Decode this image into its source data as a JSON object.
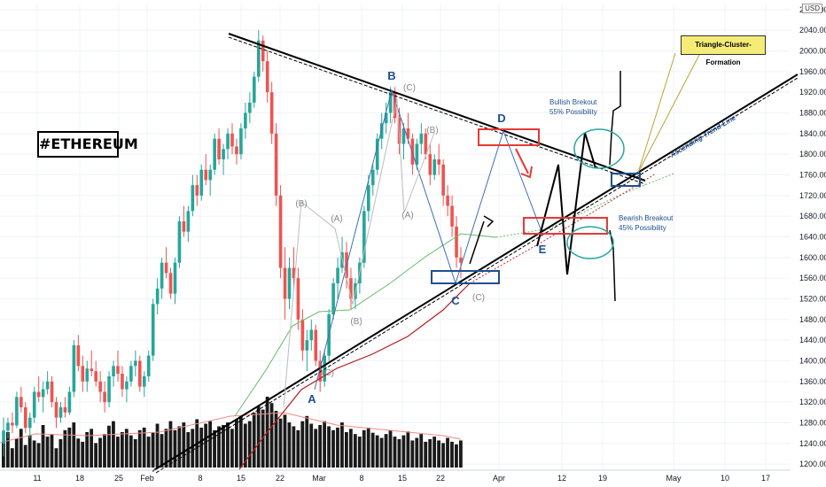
{
  "chart_data": {
    "type": "candlestick",
    "title": "#ETHEREUM",
    "currency": "USD",
    "y_ticks": [
      1200,
      1240,
      1280,
      1320,
      1360,
      1400,
      1440,
      1480,
      1520,
      1560,
      1600,
      1640,
      1680,
      1720,
      1760,
      1800,
      1840,
      1880,
      1920,
      1960,
      2000,
      2040,
      2080
    ],
    "y_tick_labels": [
      "1200.00",
      "1240.00",
      "1280.00",
      "1320.00",
      "1360.00",
      "1400.00",
      "1440.00",
      "1480.00",
      "1520.00",
      "1560.00",
      "1600.00",
      "1640.00",
      "1680.00",
      "1720.00",
      "1760.00",
      "1800.00",
      "1840.00",
      "1880.00",
      "1920.00",
      "1960.00",
      "2000.00",
      "2040.00",
      "2080.00"
    ],
    "ylim": [
      1190,
      2090
    ],
    "x_tick_labels": [
      "11",
      "18",
      "25",
      "Feb",
      "8",
      "15",
      "22",
      "Mar",
      "8",
      "15",
      "22",
      "Apr",
      "12",
      "19",
      "May",
      "10",
      "17"
    ],
    "price_series": [
      [
        1240,
        1290,
        1215,
        1265
      ],
      [
        1265,
        1290,
        1250,
        1280
      ],
      [
        1280,
        1300,
        1260,
        1275
      ],
      [
        1275,
        1340,
        1270,
        1330
      ],
      [
        1330,
        1350,
        1300,
        1310
      ],
      [
        1310,
        1320,
        1260,
        1270
      ],
      [
        1270,
        1300,
        1250,
        1290
      ],
      [
        1290,
        1350,
        1280,
        1340
      ],
      [
        1340,
        1370,
        1320,
        1330
      ],
      [
        1330,
        1360,
        1300,
        1345
      ],
      [
        1345,
        1380,
        1335,
        1360
      ],
      [
        1360,
        1370,
        1310,
        1320
      ],
      [
        1320,
        1330,
        1270,
        1290
      ],
      [
        1290,
        1320,
        1280,
        1310
      ],
      [
        1310,
        1330,
        1290,
        1300
      ],
      [
        1300,
        1350,
        1295,
        1340
      ],
      [
        1340,
        1440,
        1330,
        1430
      ],
      [
        1430,
        1450,
        1380,
        1390
      ],
      [
        1390,
        1410,
        1340,
        1360
      ],
      [
        1360,
        1400,
        1340,
        1385
      ],
      [
        1385,
        1420,
        1370,
        1380
      ],
      [
        1380,
        1400,
        1350,
        1360
      ],
      [
        1360,
        1380,
        1320,
        1340
      ],
      [
        1340,
        1360,
        1300,
        1320
      ],
      [
        1320,
        1380,
        1310,
        1370
      ],
      [
        1370,
        1400,
        1350,
        1390
      ],
      [
        1390,
        1420,
        1360,
        1375
      ],
      [
        1375,
        1390,
        1330,
        1345
      ],
      [
        1345,
        1370,
        1320,
        1360
      ],
      [
        1360,
        1400,
        1350,
        1390
      ],
      [
        1390,
        1420,
        1370,
        1400
      ],
      [
        1400,
        1410,
        1340,
        1350
      ],
      [
        1350,
        1380,
        1330,
        1370
      ],
      [
        1370,
        1420,
        1360,
        1410
      ],
      [
        1410,
        1520,
        1400,
        1510
      ],
      [
        1510,
        1560,
        1490,
        1540
      ],
      [
        1540,
        1600,
        1520,
        1590
      ],
      [
        1590,
        1620,
        1560,
        1570
      ],
      [
        1570,
        1580,
        1520,
        1530
      ],
      [
        1530,
        1600,
        1510,
        1590
      ],
      [
        1590,
        1680,
        1580,
        1670
      ],
      [
        1670,
        1700,
        1640,
        1650
      ],
      [
        1650,
        1700,
        1630,
        1690
      ],
      [
        1690,
        1760,
        1680,
        1740
      ],
      [
        1740,
        1760,
        1700,
        1720
      ],
      [
        1720,
        1780,
        1710,
        1770
      ],
      [
        1770,
        1800,
        1740,
        1750
      ],
      [
        1750,
        1780,
        1720,
        1770
      ],
      [
        1770,
        1840,
        1760,
        1830
      ],
      [
        1830,
        1850,
        1780,
        1790
      ],
      [
        1790,
        1820,
        1760,
        1810
      ],
      [
        1810,
        1850,
        1790,
        1840
      ],
      [
        1840,
        1860,
        1800,
        1815
      ],
      [
        1815,
        1830,
        1780,
        1800
      ],
      [
        1800,
        1860,
        1790,
        1850
      ],
      [
        1850,
        1900,
        1830,
        1880
      ],
      [
        1880,
        1920,
        1860,
        1900
      ],
      [
        1900,
        1960,
        1890,
        1950
      ],
      [
        1950,
        2040,
        1940,
        2020
      ],
      [
        2020,
        2030,
        1960,
        1980
      ],
      [
        1980,
        2000,
        1900,
        1920
      ],
      [
        1920,
        1940,
        1820,
        1840
      ],
      [
        1840,
        1860,
        1700,
        1720
      ],
      [
        1720,
        1740,
        1560,
        1580
      ],
      [
        1580,
        1620,
        1480,
        1520
      ],
      [
        1520,
        1600,
        1500,
        1580
      ],
      [
        1580,
        1620,
        1540,
        1560
      ],
      [
        1560,
        1580,
        1460,
        1480
      ],
      [
        1480,
        1500,
        1400,
        1420
      ],
      [
        1420,
        1460,
        1380,
        1440
      ],
      [
        1440,
        1480,
        1420,
        1460
      ],
      [
        1460,
        1470,
        1390,
        1400
      ],
      [
        1400,
        1420,
        1340,
        1360
      ],
      [
        1360,
        1420,
        1350,
        1410
      ],
      [
        1410,
        1500,
        1400,
        1490
      ],
      [
        1490,
        1560,
        1480,
        1550
      ],
      [
        1550,
        1600,
        1520,
        1580
      ],
      [
        1580,
        1640,
        1570,
        1610
      ],
      [
        1610,
        1630,
        1540,
        1560
      ],
      [
        1560,
        1580,
        1500,
        1520
      ],
      [
        1520,
        1560,
        1500,
        1550
      ],
      [
        1550,
        1600,
        1530,
        1590
      ],
      [
        1590,
        1700,
        1580,
        1690
      ],
      [
        1690,
        1760,
        1670,
        1740
      ],
      [
        1740,
        1780,
        1720,
        1770
      ],
      [
        1770,
        1840,
        1760,
        1830
      ],
      [
        1830,
        1880,
        1810,
        1860
      ],
      [
        1860,
        1900,
        1840,
        1880
      ],
      [
        1880,
        1930,
        1860,
        1920
      ],
      [
        1920,
        1930,
        1860,
        1870
      ],
      [
        1870,
        1890,
        1800,
        1820
      ],
      [
        1820,
        1860,
        1790,
        1850
      ],
      [
        1850,
        1880,
        1820,
        1830
      ],
      [
        1830,
        1840,
        1760,
        1780
      ],
      [
        1780,
        1830,
        1770,
        1820
      ],
      [
        1820,
        1860,
        1800,
        1840
      ],
      [
        1840,
        1850,
        1790,
        1800
      ],
      [
        1800,
        1820,
        1740,
        1760
      ],
      [
        1760,
        1800,
        1750,
        1790
      ],
      [
        1790,
        1820,
        1760,
        1780
      ],
      [
        1780,
        1790,
        1700,
        1720
      ],
      [
        1720,
        1740,
        1680,
        1700
      ],
      [
        1700,
        1720,
        1640,
        1660
      ],
      [
        1660,
        1680,
        1580,
        1600
      ],
      [
        1600,
        1620,
        1560,
        1590
      ]
    ],
    "volume_series": [
      40,
      55,
      30,
      45,
      60,
      35,
      50,
      42,
      38,
      66,
      48,
      52,
      30,
      44,
      58,
      62,
      70,
      45,
      40,
      55,
      60,
      38,
      46,
      52,
      65,
      72,
      48,
      55,
      60,
      50,
      44,
      58,
      62,
      48,
      55,
      68,
      52,
      60,
      72,
      58,
      64,
      70,
      55,
      60,
      75,
      62,
      68,
      72,
      58,
      64,
      66,
      70,
      60,
      75,
      80,
      68,
      72,
      85,
      95,
      90,
      110,
      100,
      88,
      76,
      82,
      70,
      64,
      58,
      72,
      80,
      68,
      60,
      66,
      72,
      64,
      58,
      62,
      70,
      55,
      60,
      52,
      48,
      58,
      62,
      54,
      50,
      46,
      52,
      58,
      48,
      44,
      50,
      56,
      42,
      46,
      52,
      40,
      44,
      48,
      42,
      38,
      46,
      40,
      36,
      42
    ],
    "annotations": {
      "waves_major": [
        "A",
        "B",
        "C",
        "D",
        "E"
      ],
      "waves_minor": [
        "(B)",
        "(A)",
        "(C)",
        "(B)",
        "(C)",
        "(A)",
        "(B)",
        "(C)"
      ],
      "trendline_label": "Ascending-Trend-Line",
      "callout": "Triangle-Cluster-Formation",
      "bullish_title": "Bullish Brekout",
      "bullish_prob": "55% Possibility",
      "bearish_title": "Bearish Breakout",
      "bearish_prob": "45% Possibility"
    }
  }
}
